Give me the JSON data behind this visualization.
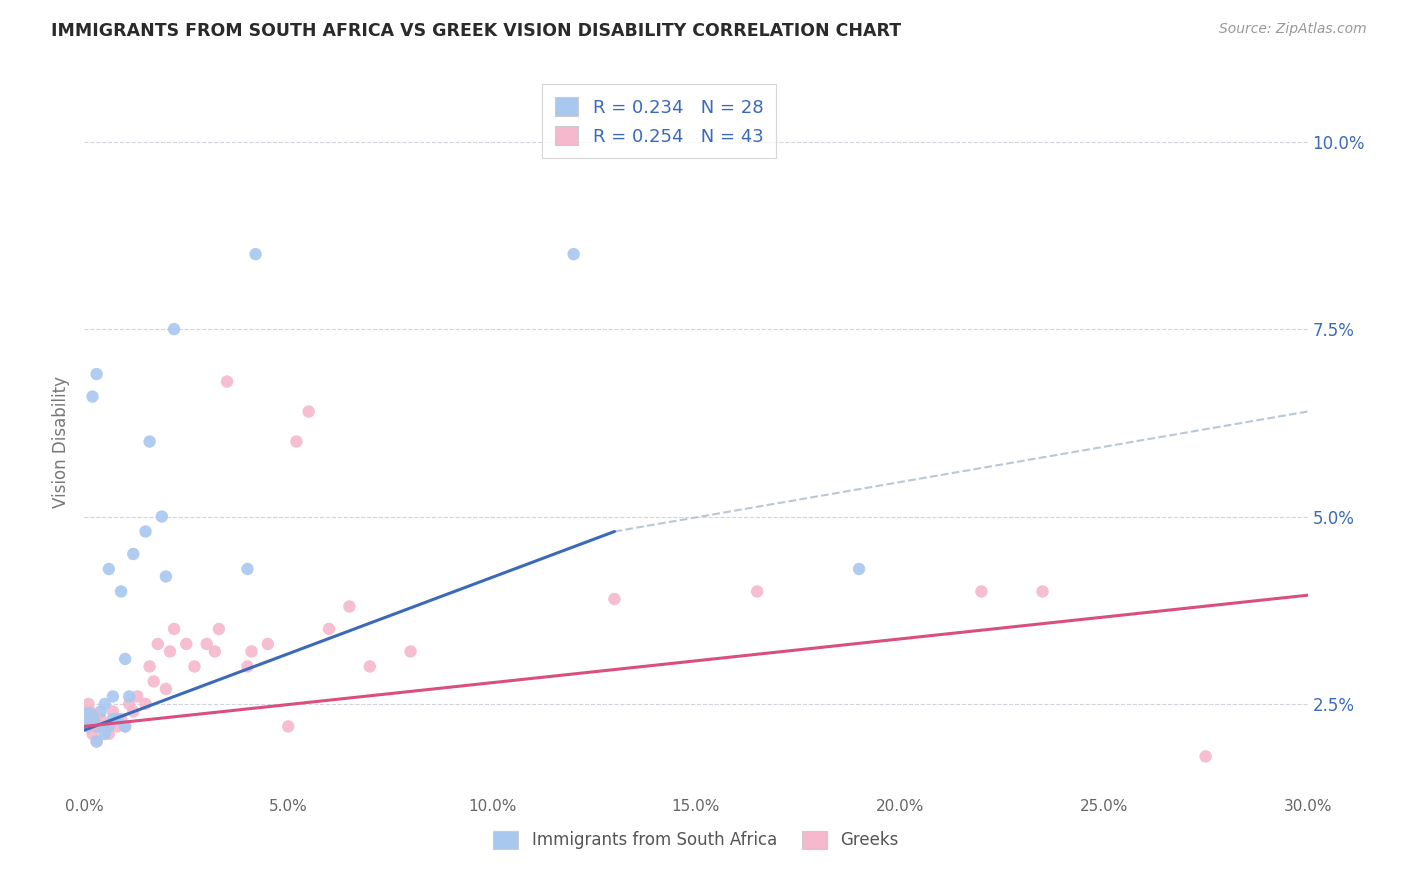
{
  "title": "IMMIGRANTS FROM SOUTH AFRICA VS GREEK VISION DISABILITY CORRELATION CHART",
  "source": "Source: ZipAtlas.com",
  "ylabel": "Vision Disability",
  "xlim": [
    0.0,
    0.3
  ],
  "ylim": [
    0.013,
    0.107
  ],
  "xticks": [
    0.0,
    0.05,
    0.1,
    0.15,
    0.2,
    0.25,
    0.3
  ],
  "xticklabels": [
    "0.0%",
    "5.0%",
    "10.0%",
    "15.0%",
    "20.0%",
    "25.0%",
    "30.0%"
  ],
  "yticks_right": [
    0.025,
    0.05,
    0.075,
    0.1
  ],
  "yticklabels_right": [
    "2.5%",
    "5.0%",
    "7.5%",
    "10.0%"
  ],
  "blue_R": "0.234",
  "blue_N": "28",
  "pink_R": "0.254",
  "pink_N": "43",
  "blue_dot_color": "#a8c8f0",
  "pink_dot_color": "#f5b8cc",
  "blue_line_color": "#3a6ab8",
  "pink_line_color": "#d94f80",
  "dashed_color": "#b8c8d8",
  "axis_tick_color": "#3a6ab8",
  "title_color": "#2a2a2a",
  "source_color": "#999999",
  "grid_color": "#d0d4dc",
  "bg_color": "#ffffff",
  "legend_border": "#cccccc",
  "blue_line_x": [
    0.0,
    0.13
  ],
  "blue_line_y": [
    0.0215,
    0.048
  ],
  "dash_line_x": [
    0.13,
    0.3
  ],
  "dash_line_y": [
    0.048,
    0.064
  ],
  "pink_line_x": [
    0.0,
    0.3
  ],
  "pink_line_y": [
    0.022,
    0.0395
  ],
  "blue_x": [
    0.001,
    0.002,
    0.003,
    0.003,
    0.004,
    0.005,
    0.005,
    0.006,
    0.007,
    0.007,
    0.008,
    0.01,
    0.01,
    0.011,
    0.012,
    0.015,
    0.016,
    0.019,
    0.02,
    0.022,
    0.04,
    0.042,
    0.12,
    0.19,
    0.002,
    0.003,
    0.006,
    0.009
  ],
  "blue_y": [
    0.022,
    0.023,
    0.02,
    0.022,
    0.024,
    0.021,
    0.025,
    0.022,
    0.023,
    0.026,
    0.023,
    0.022,
    0.031,
    0.026,
    0.045,
    0.048,
    0.06,
    0.05,
    0.042,
    0.075,
    0.043,
    0.085,
    0.085,
    0.043,
    0.066,
    0.069,
    0.043,
    0.04
  ],
  "pink_x": [
    0.001,
    0.001,
    0.002,
    0.003,
    0.004,
    0.004,
    0.005,
    0.006,
    0.007,
    0.008,
    0.009,
    0.01,
    0.011,
    0.012,
    0.013,
    0.015,
    0.016,
    0.017,
    0.018,
    0.02,
    0.021,
    0.022,
    0.025,
    0.027,
    0.03,
    0.032,
    0.033,
    0.035,
    0.04,
    0.041,
    0.045,
    0.05,
    0.052,
    0.055,
    0.06,
    0.065,
    0.07,
    0.08,
    0.13,
    0.165,
    0.22,
    0.235,
    0.275
  ],
  "pink_y": [
    0.022,
    0.025,
    0.021,
    0.02,
    0.023,
    0.022,
    0.022,
    0.021,
    0.024,
    0.022,
    0.023,
    0.022,
    0.025,
    0.024,
    0.026,
    0.025,
    0.03,
    0.028,
    0.033,
    0.027,
    0.032,
    0.035,
    0.033,
    0.03,
    0.033,
    0.032,
    0.035,
    0.068,
    0.03,
    0.032,
    0.033,
    0.022,
    0.06,
    0.064,
    0.035,
    0.038,
    0.03,
    0.032,
    0.039,
    0.04,
    0.04,
    0.04,
    0.018
  ],
  "marker_size": 80,
  "large_pink_size": 350,
  "large_blue_size": 280
}
